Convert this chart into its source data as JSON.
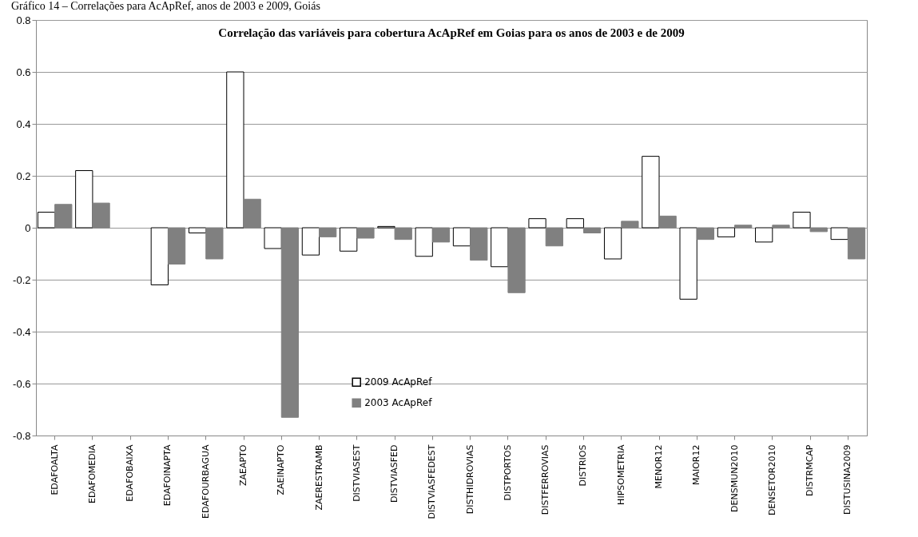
{
  "chart_data": {
    "type": "bar",
    "title": "Correlação das variáveis para cobertura AcApRef em Goias para os anos de 2003 e de 2009",
    "annotations": [
      "Gráfico 14 – Correlações para AcApRef, anos de 2003 e 2009, Goiás"
    ],
    "categories": [
      "EDAFOALTA",
      "EDAFOMEDIA",
      "EDAFOBAIXA",
      "EDAFOINAPTA",
      "EDAFOURBAGUA",
      "ZAEAPTO",
      "ZAEINAPTO",
      "ZAERESTRAMB",
      "DISTVIASEST",
      "DISTVIASFED",
      "DISTVIASFEDEST",
      "DISTHIDROVIAS",
      "DISTPORTOS",
      "DISTFERROVIAS",
      "DISTRIOS",
      "HIPSOMETRIA",
      "MENOR12",
      "MAIOR12",
      "DENSMUN2010",
      "DENSETOR2010",
      "DISTRMCAP",
      "DISTUSINA2009"
    ],
    "series": [
      {
        "name": "2009 AcApRef",
        "color": "#ffffff",
        "values": [
          0.06,
          0.22,
          null,
          -0.22,
          -0.02,
          0.6,
          -0.08,
          -0.105,
          -0.09,
          0.005,
          -0.11,
          -0.07,
          -0.15,
          0.035,
          0.035,
          -0.12,
          0.275,
          -0.275,
          -0.035,
          -0.055,
          0.06,
          -0.045
        ]
      },
      {
        "name": "2003 AcApRef",
        "color": "#808080",
        "values": [
          0.09,
          0.095,
          null,
          -0.14,
          -0.12,
          0.11,
          -0.73,
          -0.035,
          -0.04,
          -0.045,
          -0.055,
          -0.125,
          -0.25,
          -0.07,
          -0.02,
          0.025,
          0.045,
          -0.045,
          0.01,
          0.01,
          -0.015,
          -0.12
        ]
      }
    ],
    "ylim": [
      -0.8,
      0.8
    ],
    "yticks": [
      -0.8,
      -0.6,
      -0.4,
      -0.2,
      0,
      0.2,
      0.4,
      0.6,
      0.8
    ],
    "grid": "y",
    "legend": "bottom"
  }
}
